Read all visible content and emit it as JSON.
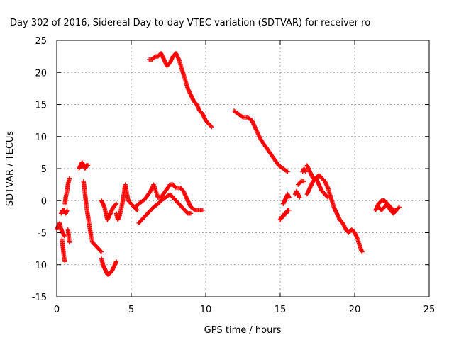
{
  "chart_data": {
    "type": "scatter",
    "title": "Day 302 of 2016, Sidereal Day-to-day VTEC variation (SDTVAR) for receiver ro",
    "xlabel": "GPS time / hours",
    "ylabel": "SDTVAR / TECUs",
    "xlim": [
      0,
      25
    ],
    "ylim": [
      -15,
      25
    ],
    "xticks": [
      0,
      5,
      10,
      15,
      20,
      25
    ],
    "yticks": [
      -15,
      -10,
      -5,
      0,
      5,
      10,
      15,
      20,
      25
    ],
    "grid": true,
    "legend": "none",
    "marker": "plus",
    "color": "#ff0000",
    "segments": [
      {
        "x": [
          0.0,
          0.1,
          0.2,
          0.3,
          0.4,
          0.5
        ],
        "y": [
          -4.5,
          -4.0,
          -3.5,
          -4.5,
          -5.0,
          -5.5
        ]
      },
      {
        "x": [
          0.35,
          0.4,
          0.45,
          0.5,
          0.55
        ],
        "y": [
          -6.0,
          -7.0,
          -8.0,
          -9.0,
          -9.5
        ]
      },
      {
        "x": [
          0.3,
          0.4,
          0.5,
          0.6,
          0.7
        ],
        "y": [
          -2.0,
          -1.5,
          -1.5,
          -2.0,
          -1.5
        ]
      },
      {
        "x": [
          0.55,
          0.6,
          0.7,
          0.75,
          0.8,
          0.85
        ],
        "y": [
          -0.5,
          0.5,
          1.5,
          2.5,
          3.0,
          3.5
        ]
      },
      {
        "x": [
          0.75,
          0.8,
          0.85
        ],
        "y": [
          -4.5,
          -5.5,
          -6.5
        ]
      },
      {
        "x": [
          1.5,
          1.6,
          1.7,
          1.8,
          1.9,
          2.0,
          2.1
        ],
        "y": [
          5.0,
          5.5,
          6.0,
          5.5,
          5.0,
          5.5,
          5.5
        ]
      },
      {
        "x": [
          1.8,
          1.9,
          2.0,
          2.1,
          2.2,
          2.3,
          2.4,
          2.6,
          2.8,
          3.0
        ],
        "y": [
          3.0,
          1.0,
          -1.0,
          -2.5,
          -4.0,
          -5.5,
          -6.5,
          -7.0,
          -7.5,
          -8.0
        ]
      },
      {
        "x": [
          3.0,
          3.1,
          3.2,
          3.3,
          3.4,
          3.5,
          3.7,
          3.9,
          4.0
        ],
        "y": [
          -9.0,
          -10.0,
          -10.5,
          -11.0,
          -11.5,
          -11.5,
          -11.0,
          -10.0,
          -9.5
        ]
      },
      {
        "x": [
          3.0,
          3.1,
          3.2,
          3.3,
          3.4,
          3.5,
          3.6,
          3.8,
          4.0
        ],
        "y": [
          0.0,
          -0.5,
          -1.0,
          -2.0,
          -3.0,
          -2.5,
          -2.0,
          -1.0,
          -0.5
        ]
      },
      {
        "x": [
          4.0,
          4.1,
          4.2,
          4.3,
          4.4,
          4.5,
          4.6,
          4.8,
          5.0,
          5.2,
          5.4
        ],
        "y": [
          -2.0,
          -3.0,
          -2.5,
          -1.5,
          -0.5,
          1.0,
          2.5,
          0.0,
          -0.5,
          -1.0,
          -1.5
        ]
      },
      {
        "x": [
          5.5,
          5.7,
          5.9,
          6.1,
          6.3,
          6.5,
          6.8,
          7.0,
          7.3,
          7.6,
          7.8,
          8.0,
          8.2,
          8.4,
          8.6,
          8.8,
          9.0
        ],
        "y": [
          -3.5,
          -3.0,
          -2.5,
          -2.0,
          -1.5,
          -1.0,
          -0.5,
          0.0,
          0.5,
          1.0,
          0.5,
          0.0,
          -0.5,
          -1.0,
          -1.5,
          -2.0,
          -2.0
        ]
      },
      {
        "x": [
          5.3,
          5.5,
          5.8,
          6.0,
          6.3,
          6.5,
          6.8,
          7.0,
          7.3,
          7.6,
          7.8,
          8.0,
          8.3,
          8.5,
          8.8,
          9.0,
          9.3,
          9.5,
          9.8
        ],
        "y": [
          -1.0,
          -0.5,
          0.0,
          0.5,
          1.5,
          2.5,
          0.5,
          0.5,
          1.5,
          2.5,
          2.5,
          2.0,
          2.0,
          1.5,
          0.0,
          -1.0,
          -1.5,
          -1.5,
          -1.5
        ]
      },
      {
        "x": [
          6.2,
          6.4,
          6.6,
          6.8,
          7.0,
          7.2,
          7.4,
          7.6,
          7.8,
          8.0,
          8.2,
          8.4,
          8.6,
          8.8,
          9.0,
          9.2,
          9.4,
          9.6,
          9.8,
          10.0,
          10.2,
          10.4
        ],
        "y": [
          22.0,
          22.0,
          22.5,
          22.5,
          23.0,
          22.0,
          21.0,
          21.5,
          22.5,
          23.0,
          22.0,
          20.5,
          19.0,
          17.5,
          16.5,
          15.5,
          15.0,
          14.0,
          13.5,
          12.5,
          12.0,
          11.5
        ]
      },
      {
        "x": [
          11.9,
          12.2,
          12.5,
          12.8,
          13.1,
          13.4,
          13.7,
          14.0,
          14.3,
          14.6,
          14.9,
          15.2,
          15.5
        ],
        "y": [
          14.0,
          13.5,
          13.0,
          13.0,
          12.5,
          11.0,
          9.5,
          8.5,
          7.5,
          6.5,
          5.5,
          5.0,
          4.5
        ]
      },
      {
        "x": [
          15.0,
          15.1,
          15.2,
          15.3,
          15.4,
          15.5,
          15.6
        ],
        "y": [
          -3.0,
          -2.5,
          -2.5,
          -2.0,
          -2.0,
          -1.5,
          -1.5
        ]
      },
      {
        "x": [
          15.2,
          15.3,
          15.4,
          15.5,
          15.6
        ],
        "y": [
          -0.5,
          0.0,
          0.5,
          1.0,
          0.5
        ]
      },
      {
        "x": [
          16.0,
          16.1,
          16.2,
          16.3
        ],
        "y": [
          1.0,
          1.5,
          1.0,
          0.5
        ]
      },
      {
        "x": [
          16.5,
          16.6,
          16.7
        ],
        "y": [
          4.5,
          5.0,
          4.5
        ]
      },
      {
        "x": [
          16.2,
          16.4,
          16.6
        ],
        "y": [
          2.5,
          3.0,
          3.0
        ]
      },
      {
        "x": [
          16.8,
          17.0,
          17.2,
          17.4,
          17.6,
          17.8,
          18.0,
          18.2,
          18.4,
          18.6,
          18.8,
          19.0,
          19.2,
          19.4,
          19.6,
          19.8,
          20.0,
          20.2,
          20.4,
          20.5
        ],
        "y": [
          5.5,
          4.5,
          3.5,
          3.5,
          4.0,
          3.5,
          3.0,
          2.0,
          0.5,
          -1.0,
          -2.0,
          -3.0,
          -3.5,
          -4.5,
          -5.0,
          -4.5,
          -5.0,
          -6.0,
          -7.5,
          -8.0
        ]
      },
      {
        "x": [
          16.8,
          17.0,
          17.2,
          17.4,
          17.6,
          17.8,
          18.0,
          18.2
        ],
        "y": [
          1.0,
          2.0,
          3.0,
          3.5,
          2.5,
          1.5,
          1.0,
          0.5
        ]
      },
      {
        "x": [
          21.4,
          21.6,
          21.8,
          22.0,
          22.2,
          22.4,
          22.6,
          22.8,
          23.0
        ],
        "y": [
          -1.5,
          -0.5,
          0.0,
          0.0,
          -0.5,
          -1.0,
          -1.5,
          -1.5,
          -1.0
        ]
      },
      {
        "x": [
          21.6,
          21.8,
          22.0,
          22.2,
          22.4,
          22.6,
          22.8
        ],
        "y": [
          -1.0,
          -1.5,
          -1.0,
          -0.5,
          -1.5,
          -2.0,
          -1.5
        ]
      }
    ]
  }
}
